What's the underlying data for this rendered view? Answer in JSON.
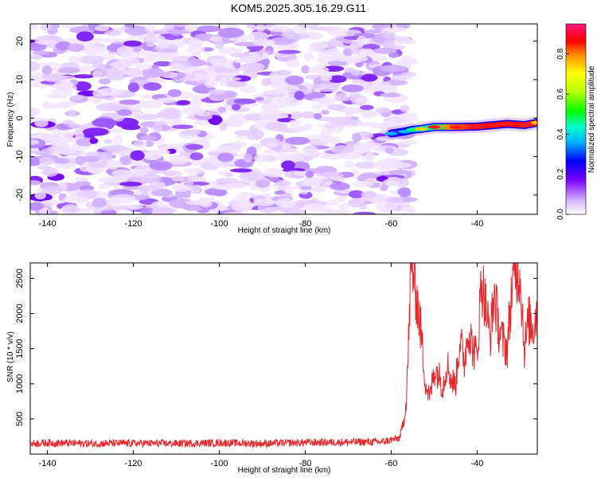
{
  "title": "KOM5.2025.305.16.29.G11",
  "chart_data": [
    {
      "type": "heatmap",
      "xlabel": "Height of straight line (km)",
      "ylabel": "Frequency (Hz)",
      "xlim": [
        -144,
        -26
      ],
      "ylim": [
        -25,
        24.5
      ],
      "x_ticks": [
        -140,
        -120,
        -100,
        -80,
        -60,
        -40
      ],
      "y_ticks": [
        -20,
        -10,
        0,
        10,
        20
      ],
      "noise_region_end_km": -57,
      "signal_track": {
        "x": [
          -60,
          -57,
          -55,
          -53,
          -50,
          -45,
          -40,
          -36,
          -33,
          -29,
          -26
        ],
        "y": [
          -4,
          -3.5,
          -3,
          -2.8,
          -2.3,
          -2.3,
          -2.2,
          -1.8,
          -1.5,
          -1.8,
          -1.2
        ],
        "amplitude": [
          0.3,
          0.45,
          0.55,
          0.65,
          0.8,
          0.85,
          0.8,
          0.9,
          0.9,
          0.85,
          0.75
        ]
      },
      "colorbar": {
        "label": "Normalized spectral amplitude",
        "range": [
          0,
          0.95
        ],
        "ticks": [
          0.0,
          0.2,
          0.4,
          0.6,
          0.8
        ]
      }
    },
    {
      "type": "line",
      "xlabel": "Height of straight line (km)",
      "ylabel": "SNR (10 * v/v)",
      "xlim": [
        -144,
        -26
      ],
      "ylim": [
        0,
        2720
      ],
      "x_ticks": [
        -140,
        -120,
        -100,
        -80,
        -60,
        -40
      ],
      "y_ticks": [
        500,
        1000,
        1500,
        2000,
        2500
      ],
      "series": [
        {
          "name": "SNR",
          "color": "#e8262b",
          "x": [
            -144,
            -140,
            -130,
            -120,
            -110,
            -100,
            -90,
            -80,
            -70,
            -62,
            -60,
            -58,
            -57,
            -56.5,
            -56,
            -55.5,
            -55,
            -54,
            -53,
            -52,
            -51,
            -50,
            -49,
            -48,
            -47,
            -46,
            -45,
            -44,
            -43,
            -42,
            -41,
            -40,
            -39,
            -38,
            -37,
            -36,
            -35,
            -34,
            -33,
            -32,
            -31,
            -30,
            -29,
            -28,
            -27,
            -26
          ],
          "values": [
            150,
            160,
            150,
            155,
            150,
            160,
            150,
            165,
            170,
            175,
            200,
            230,
            500,
            750,
            1500,
            2500,
            2650,
            2200,
            1700,
            1000,
            800,
            1200,
            1150,
            950,
            1300,
            1050,
            1000,
            1650,
            1300,
            1800,
            1500,
            1400,
            2500,
            2100,
            1650,
            2300,
            1800,
            1600,
            1500,
            2300,
            2650,
            2600,
            1500,
            1900,
            1800,
            2050
          ]
        }
      ]
    }
  ]
}
